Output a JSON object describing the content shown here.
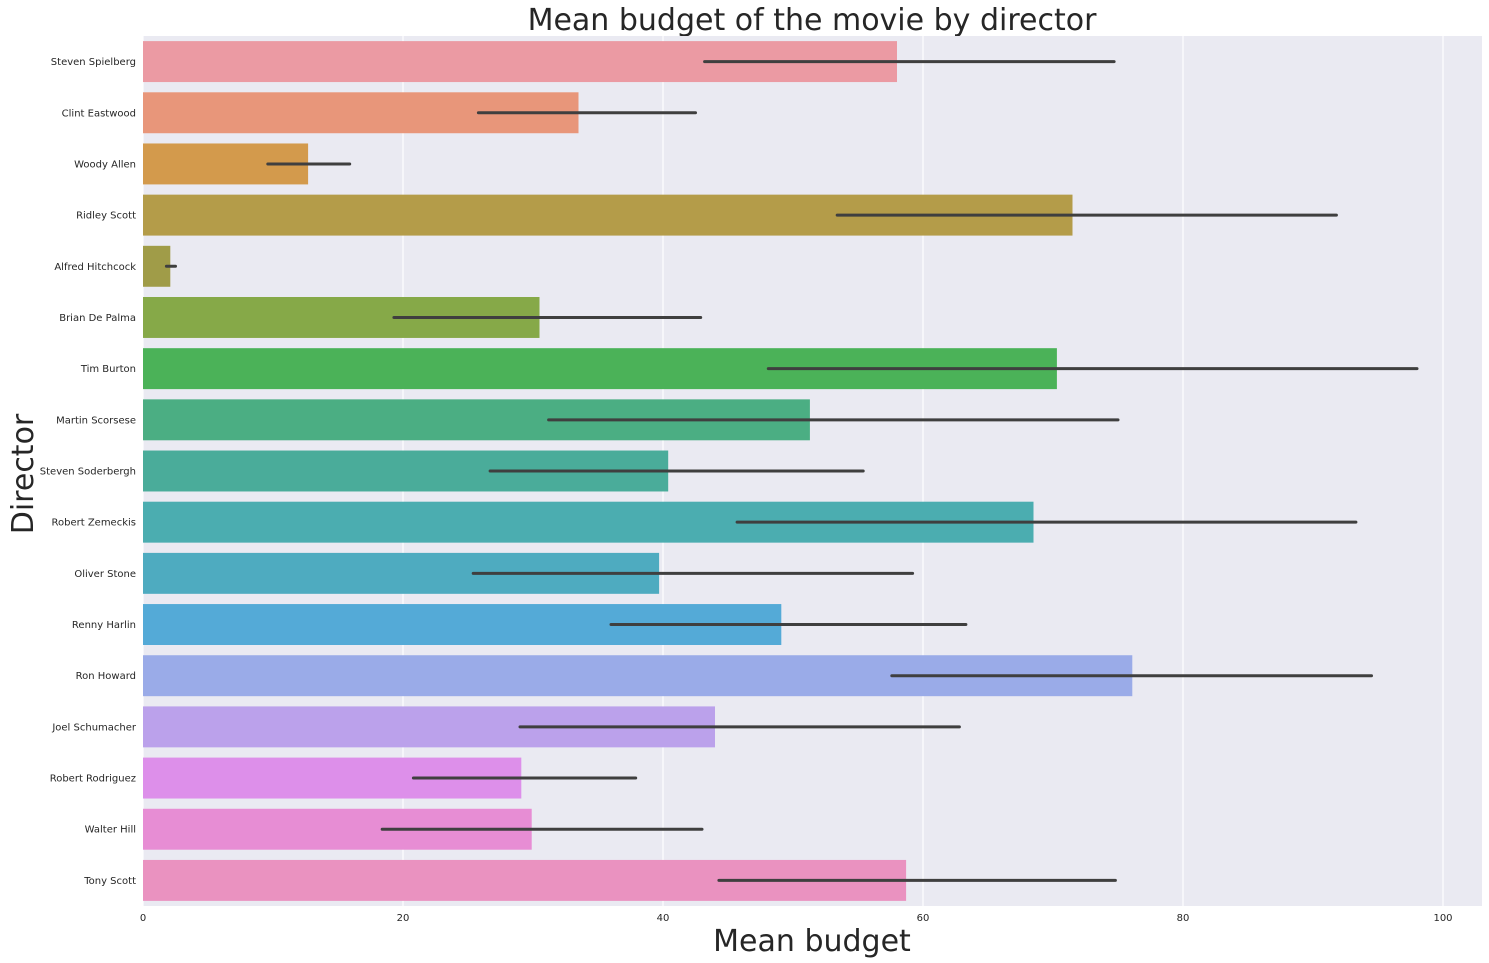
{
  "chart_data": {
    "type": "bar",
    "orientation": "horizontal",
    "title": "Mean budget of the movie by director",
    "xlabel": "Mean budget",
    "ylabel": "Director",
    "xlim": [
      0,
      103
    ],
    "xticks": [
      0,
      20,
      40,
      60,
      80,
      100
    ],
    "grid": true,
    "categories": [
      "Steven Spielberg",
      "Clint Eastwood",
      "Woody Allen",
      "Ridley Scott",
      "Alfred Hitchcock",
      "Brian De Palma",
      "Tim Burton",
      "Martin Scorsese",
      "Steven Soderbergh",
      "Robert Zemeckis",
      "Oliver Stone",
      "Renny Harlin",
      "Ron Howard",
      "Joel Schumacher",
      "Robert Rodriguez",
      "Walter Hill",
      "Tony Scott"
    ],
    "values": [
      58.0,
      33.5,
      12.7,
      71.5,
      2.1,
      30.5,
      70.3,
      51.3,
      40.4,
      68.5,
      39.7,
      49.1,
      76.1,
      44.0,
      29.1,
      29.9,
      58.7
    ],
    "error_low": [
      43.2,
      25.8,
      9.6,
      53.4,
      1.8,
      19.3,
      48.1,
      31.2,
      26.7,
      45.7,
      25.4,
      36.0,
      57.6,
      29.0,
      20.8,
      18.4,
      44.3
    ],
    "error_high": [
      74.7,
      42.5,
      15.9,
      91.8,
      2.5,
      42.9,
      98.0,
      75.0,
      55.4,
      93.3,
      59.2,
      63.3,
      94.5,
      62.8,
      37.9,
      43.0,
      74.8
    ],
    "colors": [
      "#eb9aa3",
      "#e8967a",
      "#d39a4c",
      "#b49c49",
      "#a09c48",
      "#86a948",
      "#4bb258",
      "#4bae83",
      "#4aac9a",
      "#4badb0",
      "#4eabc0",
      "#54aad7",
      "#9aabe8",
      "#bba1eb",
      "#dd8fea",
      "#e78dd4",
      "#ea92c0"
    ]
  }
}
